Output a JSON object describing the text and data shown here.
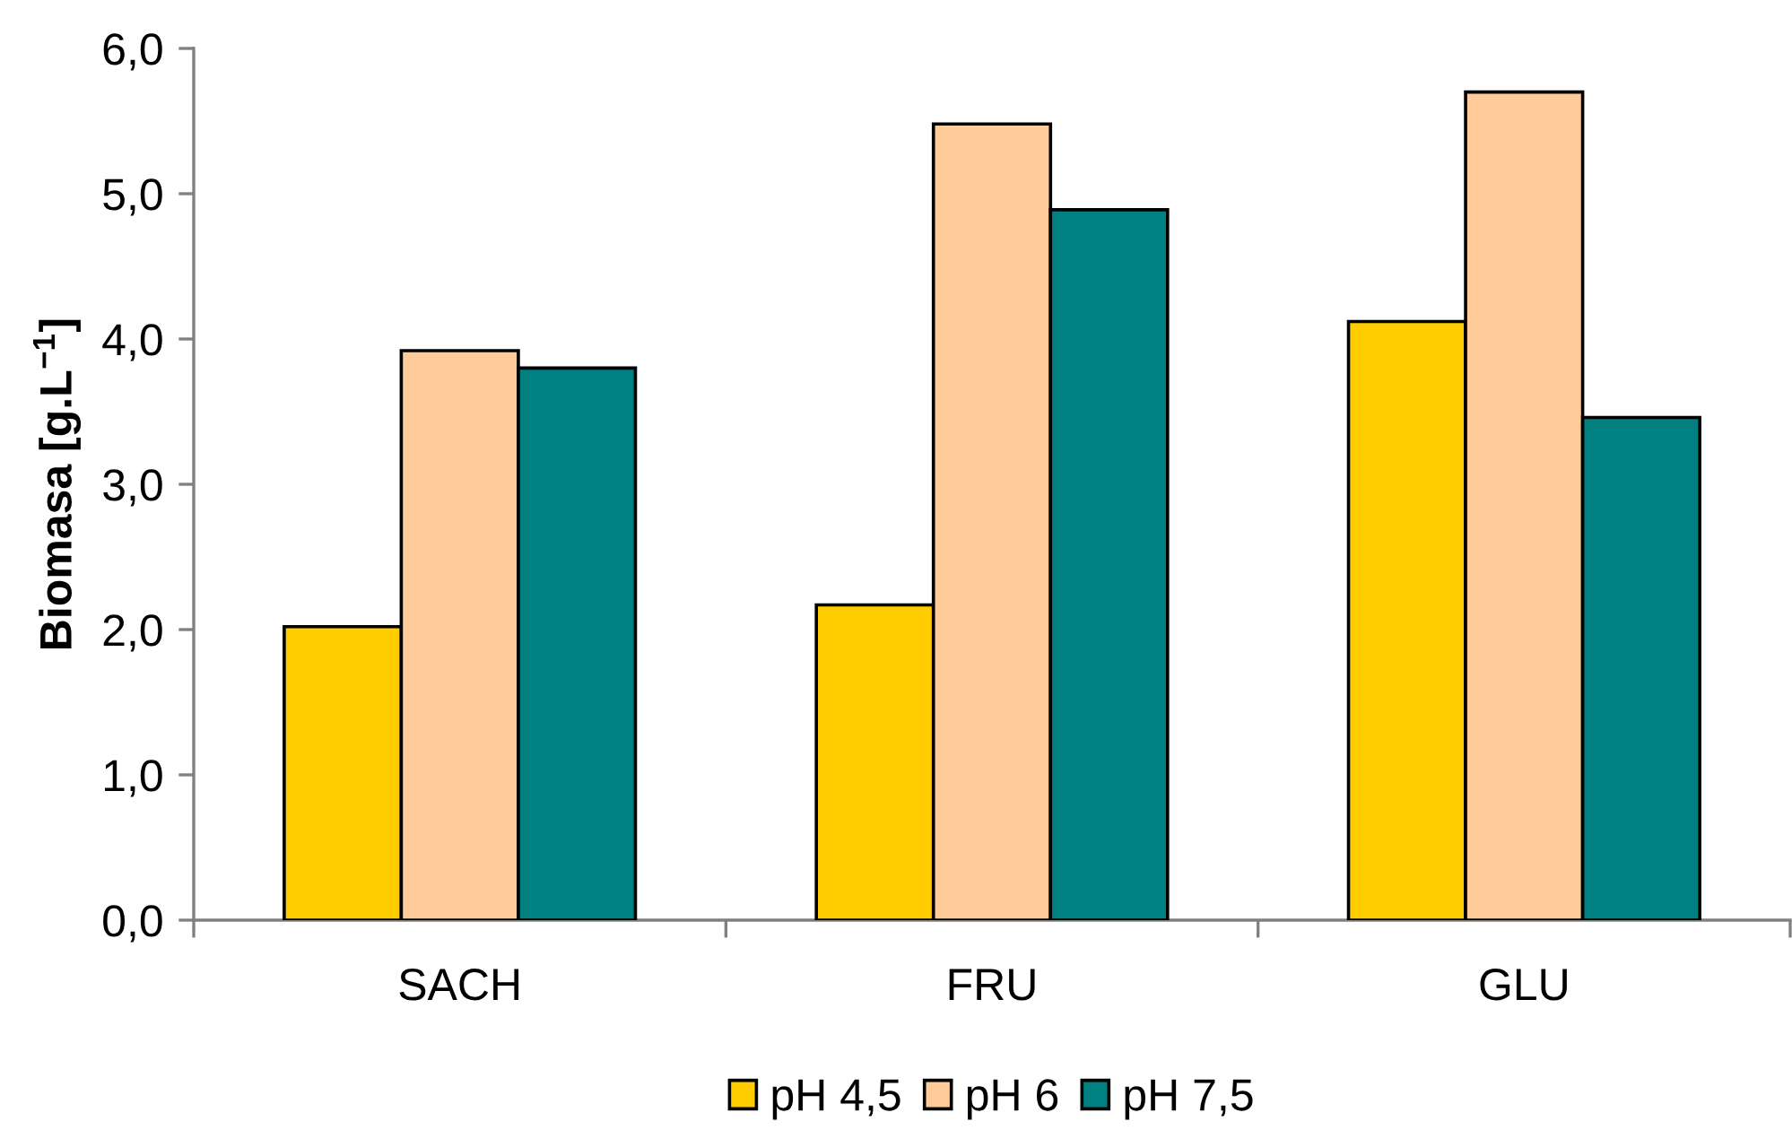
{
  "chart_data": {
    "type": "bar",
    "categories": [
      "SACH",
      "FRU",
      "GLU"
    ],
    "series": [
      {
        "name": "pH 4,5",
        "color": "#ffcc00",
        "values": [
          2.02,
          2.17,
          4.12
        ]
      },
      {
        "name": "pH 6",
        "color": "#ffcc99",
        "values": [
          3.92,
          5.48,
          5.7
        ]
      },
      {
        "name": "pH 7,5",
        "color": "#008080",
        "values": [
          3.8,
          4.89,
          3.46
        ]
      }
    ],
    "ylabel": "Biomasa [g.L$^{−1}$]",
    "ylim": [
      0,
      6
    ],
    "yticks": [
      {
        "value": 0,
        "label": "0,0"
      },
      {
        "value": 1,
        "label": "1,0"
      },
      {
        "value": 2,
        "label": "2,0"
      },
      {
        "value": 3,
        "label": "3,0"
      },
      {
        "value": 4,
        "label": "4,0"
      },
      {
        "value": 5,
        "label": "5,0"
      },
      {
        "value": 6,
        "label": "6,0"
      }
    ],
    "grid": false,
    "legend": "bottom"
  }
}
